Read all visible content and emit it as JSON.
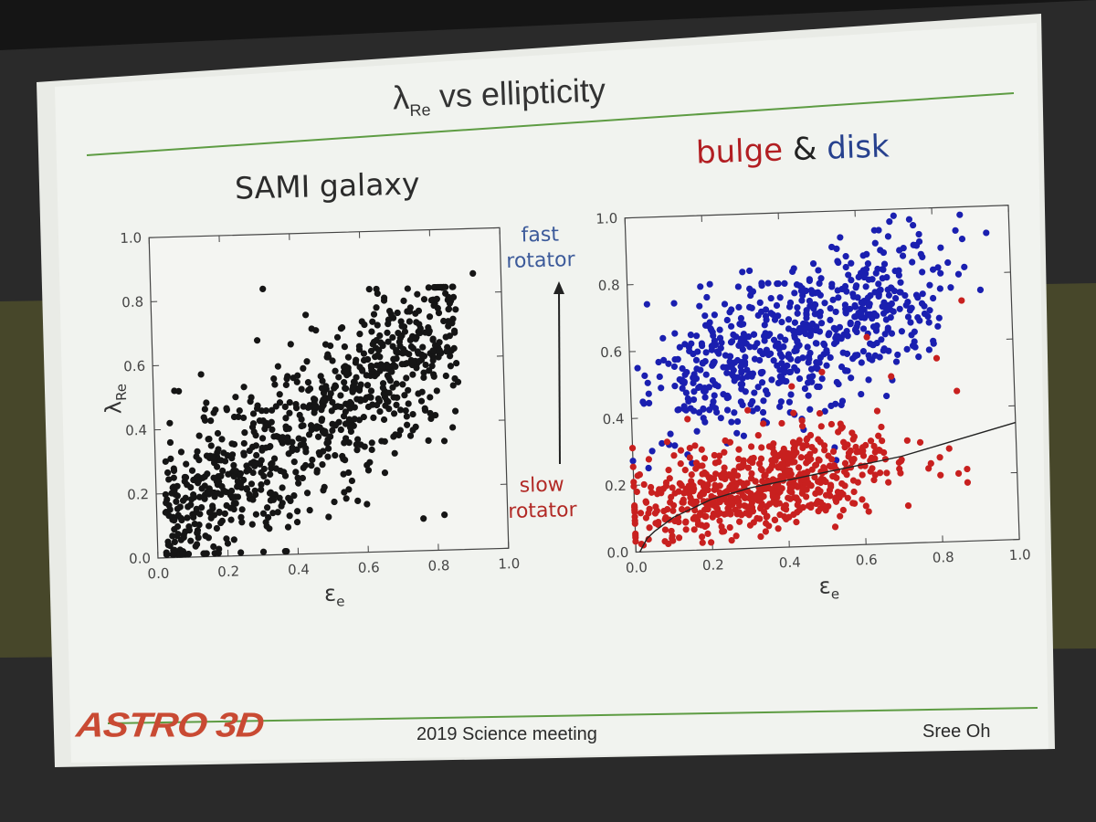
{
  "slide": {
    "title_main": "λ",
    "title_sub": "Re",
    "title_rest": " vs  ellipticity",
    "left_heading": "SAMI galaxy",
    "right_heading": {
      "bulge": "bulge",
      "amp": " & ",
      "disk": "disk"
    },
    "fast_label": [
      "fast",
      "rotator"
    ],
    "slow_label": [
      "slow",
      "rotator"
    ],
    "footer_center": "2019 Science meeting",
    "footer_right": "Sree Oh",
    "logo_text": "ASTRO 3D"
  },
  "colors": {
    "black_points": "#151515",
    "bulge": "#c8201f",
    "disk": "#1a1fb0",
    "title_line": "#5e9c43",
    "footer_line": "#5e9c43"
  },
  "chart_data": [
    {
      "type": "scatter",
      "title": "SAMI galaxy",
      "xlabel": "ε",
      "xlabel_sub": "e",
      "ylabel": "λ",
      "ylabel_sub": "Re",
      "xlim": [
        0.0,
        1.0
      ],
      "ylim": [
        0.0,
        1.0
      ],
      "xticks": [
        "0.0",
        "0.2",
        "0.4",
        "0.6",
        "0.8",
        "1.0"
      ],
      "yticks": [
        "0.0",
        "0.2",
        "0.4",
        "0.6",
        "0.8",
        "1.0"
      ],
      "series": [
        {
          "color": "#151515",
          "points": [
            [
              0.03,
              0.05
            ],
            [
              0.05,
              0.12
            ],
            [
              0.08,
              0.08
            ],
            [
              0.1,
              0.18
            ],
            [
              0.12,
              0.1
            ],
            [
              0.14,
              0.25
            ],
            [
              0.16,
              0.15
            ],
            [
              0.18,
              0.3
            ],
            [
              0.2,
              0.2
            ],
            [
              0.22,
              0.35
            ],
            [
              0.24,
              0.12
            ],
            [
              0.26,
              0.28
            ],
            [
              0.28,
              0.4
            ],
            [
              0.3,
              0.22
            ],
            [
              0.32,
              0.45
            ],
            [
              0.34,
              0.3
            ],
            [
              0.36,
              0.5
            ],
            [
              0.38,
              0.35
            ],
            [
              0.4,
              0.55
            ],
            [
              0.42,
              0.42
            ],
            [
              0.44,
              0.6
            ],
            [
              0.46,
              0.48
            ],
            [
              0.48,
              0.38
            ],
            [
              0.5,
              0.62
            ],
            [
              0.52,
              0.52
            ],
            [
              0.54,
              0.7
            ],
            [
              0.56,
              0.45
            ],
            [
              0.58,
              0.6
            ],
            [
              0.6,
              0.72
            ],
            [
              0.62,
              0.55
            ],
            [
              0.64,
              0.66
            ],
            [
              0.66,
              0.5
            ],
            [
              0.68,
              0.75
            ],
            [
              0.7,
              0.62
            ],
            [
              0.72,
              0.7
            ],
            [
              0.74,
              0.58
            ],
            [
              0.76,
              0.8
            ],
            [
              0.78,
              0.68
            ],
            [
              0.8,
              0.78
            ],
            [
              0.82,
              0.74
            ],
            [
              0.84,
              0.8
            ],
            [
              0.86,
              0.72
            ],
            [
              0.92,
              0.86
            ],
            [
              0.32,
              0.83
            ],
            [
              0.15,
              0.48
            ],
            [
              0.06,
              0.52
            ],
            [
              0.3,
              0.67
            ],
            [
              0.4,
              0.1
            ],
            [
              0.6,
              0.15
            ],
            [
              0.76,
              0.1
            ],
            [
              0.82,
              0.11
            ],
            [
              0.55,
              0.25
            ]
          ]
        },
        {
          "color": "#151515",
          "generated": {
            "count": 780,
            "seed": 17,
            "model": "sami"
          }
        }
      ]
    },
    {
      "type": "scatter",
      "title": "bulge & disk",
      "xlabel": "ε",
      "xlabel_sub": "e",
      "xlim": [
        0.0,
        1.0
      ],
      "ylim": [
        0.0,
        1.0
      ],
      "xticks": [
        "0.0",
        "0.2",
        "0.4",
        "0.6",
        "0.8",
        "1.0"
      ],
      "yticks": [
        "0.0",
        "0.2",
        "0.4",
        "0.6",
        "0.8",
        "1.0"
      ],
      "series": [
        {
          "color": "#1a1fb0",
          "points": [
            [
              0.94,
              0.92
            ],
            [
              0.86,
              0.93
            ],
            [
              0.7,
              0.98
            ],
            [
              0.02,
              0.55
            ],
            [
              0.05,
              0.74
            ],
            [
              0.12,
              0.65
            ],
            [
              0.2,
              0.7
            ],
            [
              0.32,
              0.83
            ],
            [
              0.45,
              0.78
            ],
            [
              0.55,
              0.85
            ],
            [
              0.65,
              0.9
            ],
            [
              0.75,
              0.95
            ],
            [
              0.82,
              0.88
            ],
            [
              0.88,
              0.82
            ],
            [
              0.92,
              0.75
            ],
            [
              0.5,
              0.5
            ],
            [
              0.6,
              0.45
            ],
            [
              0.3,
              0.55
            ],
            [
              0.1,
              0.35
            ],
            [
              0.04,
              0.25
            ]
          ],
          "generated": {
            "count": 640,
            "seed": 5,
            "model": "disk"
          }
        },
        {
          "color": "#c8201f",
          "points": [
            [
              0.02,
              0.02
            ],
            [
              0.06,
              0.08
            ],
            [
              0.1,
              0.12
            ],
            [
              0.15,
              0.18
            ],
            [
              0.2,
              0.14
            ],
            [
              0.25,
              0.22
            ],
            [
              0.3,
              0.15
            ],
            [
              0.35,
              0.2
            ],
            [
              0.4,
              0.25
            ],
            [
              0.45,
              0.17
            ],
            [
              0.5,
              0.3
            ],
            [
              0.55,
              0.22
            ],
            [
              0.6,
              0.28
            ],
            [
              0.65,
              0.35
            ],
            [
              0.7,
              0.25
            ],
            [
              0.75,
              0.3
            ],
            [
              0.8,
              0.2
            ],
            [
              0.85,
              0.45
            ],
            [
              0.87,
              0.72
            ],
            [
              0.8,
              0.55
            ],
            [
              0.62,
              0.62
            ],
            [
              0.68,
              0.5
            ],
            [
              0.5,
              0.52
            ],
            [
              0.42,
              0.48
            ]
          ],
          "generated": {
            "count": 620,
            "seed": 9,
            "model": "bulge"
          }
        },
        {
          "type": "line",
          "name": "",
          "color": "#222222",
          "x": [
            0.01,
            0.03,
            0.05,
            0.1,
            0.2,
            0.3,
            0.4,
            0.5,
            0.6,
            0.7,
            0.8,
            0.9,
            1.0
          ],
          "y": [
            0.0,
            0.04,
            0.06,
            0.1,
            0.15,
            0.18,
            0.2,
            0.22,
            0.24,
            0.26,
            0.29,
            0.32,
            0.35
          ]
        }
      ]
    }
  ]
}
